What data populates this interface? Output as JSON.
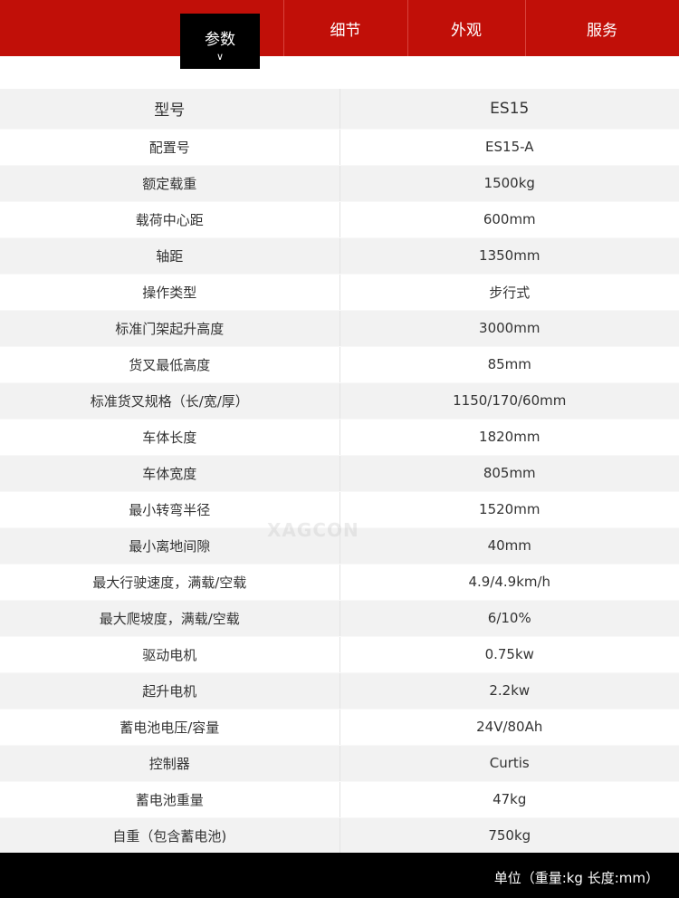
{
  "nav": {
    "tabs": [
      {
        "label": "参数",
        "active": true
      },
      {
        "label": "细节"
      },
      {
        "label": "外观"
      },
      {
        "label": "服务"
      }
    ]
  },
  "colors": {
    "brand": "#c10f08",
    "active_tab": "#000000"
  },
  "watermark": "XAGCON",
  "specs": [
    {
      "k": "型号",
      "v": "ES15"
    },
    {
      "k": "配置号",
      "v": "ES15-A"
    },
    {
      "k": "额定载重",
      "v": "1500kg"
    },
    {
      "k": "载荷中心距",
      "v": "600mm"
    },
    {
      "k": "轴距",
      "v": "1350mm"
    },
    {
      "k": "操作类型",
      "v": "步行式"
    },
    {
      "k": "标准门架起升高度",
      "v": "3000mm"
    },
    {
      "k": "货叉最低高度",
      "v": "85mm"
    },
    {
      "k": "标准货叉规格（长/宽/厚）",
      "v": "1150/170/60mm"
    },
    {
      "k": "车体长度",
      "v": "1820mm"
    },
    {
      "k": "车体宽度",
      "v": "805mm"
    },
    {
      "k": "最小转弯半径",
      "v": "1520mm"
    },
    {
      "k": "最小离地间隙",
      "v": "40mm"
    },
    {
      "k": "最大行驶速度，满载/空载",
      "v": "4.9/4.9km/h"
    },
    {
      "k": "最大爬坡度，满载/空载",
      "v": "6/10%"
    },
    {
      "k": "驱动电机",
      "v": "0.75kw"
    },
    {
      "k": "起升电机",
      "v": "2.2kw"
    },
    {
      "k": "蓄电池电压/容量",
      "v": "24V/80Ah"
    },
    {
      "k": "控制器",
      "v": "Curtis"
    },
    {
      "k": "蓄电池重量",
      "v": "47kg"
    },
    {
      "k": "自重（包含蓄电池)",
      "v": "750kg"
    }
  ],
  "footer": {
    "units": "单位（重量:kg  长度:mm）"
  }
}
